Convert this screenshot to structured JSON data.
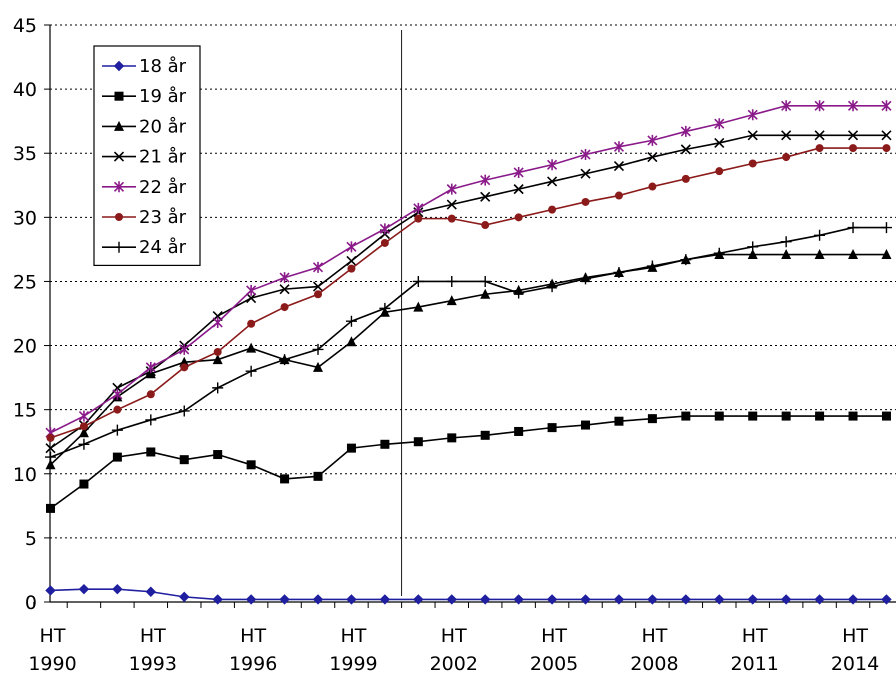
{
  "chart_data": {
    "type": "line",
    "title": "",
    "xlabel": "",
    "ylabel": "",
    "ylim": [
      0,
      45
    ],
    "y_ticks": [
      "0",
      "5",
      "10",
      "15",
      "20",
      "25",
      "30",
      "35",
      "40",
      "45"
    ],
    "x_tick_labels": [
      [
        "HT",
        "1990"
      ],
      [
        "HT",
        "1993"
      ],
      [
        "HT",
        "1996"
      ],
      [
        "HT",
        "1999"
      ],
      [
        "HT",
        "2002"
      ],
      [
        "HT",
        "2005"
      ],
      [
        "HT",
        "2008"
      ],
      [
        "HT",
        "2011"
      ],
      [
        "HT",
        "2014"
      ]
    ],
    "x_tick_years": [
      1990,
      1993,
      1996,
      1999,
      2002,
      2005,
      2008,
      2011,
      2014
    ],
    "x": [
      1990,
      1991,
      1992,
      1993,
      1994,
      1995,
      1996,
      1997,
      1998,
      1999,
      2000,
      2001,
      2002,
      2003,
      2004,
      2005,
      2006,
      2007,
      2008,
      2009,
      2010,
      2011,
      2012,
      2013,
      2014,
      2015
    ],
    "vertical_line_at": 2000.5,
    "grid": "horizontal dotted",
    "legend_position": "top-left",
    "series": [
      {
        "name": "18 år",
        "marker": "diamond",
        "color": "#1f1fa0",
        "values": [
          0.9,
          1.0,
          1.0,
          0.8,
          0.4,
          0.2,
          0.2,
          0.2,
          0.2,
          0.2,
          0.2,
          0.2,
          0.2,
          0.2,
          0.2,
          0.2,
          0.2,
          0.2,
          0.2,
          0.2,
          0.2,
          0.2,
          0.2,
          0.2,
          0.2,
          0.2
        ]
      },
      {
        "name": "19 år",
        "marker": "square",
        "color": "#000000",
        "values": [
          7.3,
          9.2,
          11.3,
          11.7,
          11.1,
          11.5,
          10.7,
          9.6,
          9.8,
          12.0,
          12.3,
          12.5,
          12.8,
          13.0,
          13.3,
          13.6,
          13.8,
          14.1,
          14.3,
          14.5,
          14.5,
          14.5,
          14.5,
          14.5,
          14.5,
          14.5
        ]
      },
      {
        "name": "20 år",
        "marker": "triangle",
        "color": "#000000",
        "values": [
          10.7,
          13.2,
          16.0,
          17.8,
          18.7,
          18.9,
          19.8,
          18.9,
          18.3,
          20.3,
          22.6,
          23.0,
          23.5,
          24.0,
          24.3,
          24.8,
          25.3,
          25.7,
          26.1,
          26.7,
          27.1,
          27.1,
          27.1,
          27.1,
          27.1,
          27.1
        ]
      },
      {
        "name": "21 år",
        "marker": "x",
        "color": "#000000",
        "values": [
          12.0,
          13.8,
          16.7,
          18.0,
          20.0,
          22.3,
          23.7,
          24.4,
          24.6,
          26.6,
          28.7,
          30.4,
          31.0,
          31.6,
          32.2,
          32.8,
          33.4,
          34.0,
          34.7,
          35.3,
          35.8,
          36.4,
          36.4,
          36.4,
          36.4,
          36.4
        ]
      },
      {
        "name": "22 år",
        "marker": "star",
        "color": "#8a1a8a",
        "values": [
          13.2,
          14.5,
          16.2,
          18.3,
          19.7,
          21.8,
          24.3,
          25.3,
          26.1,
          27.7,
          29.1,
          30.7,
          32.2,
          32.9,
          33.5,
          34.1,
          34.9,
          35.5,
          36.0,
          36.7,
          37.3,
          38.0,
          38.7,
          38.7,
          38.7,
          38.7
        ]
      },
      {
        "name": "23 år",
        "marker": "circle",
        "color": "#8b1a1a",
        "values": [
          12.8,
          13.7,
          15.0,
          16.2,
          18.3,
          19.5,
          21.7,
          23.0,
          24.0,
          26.0,
          28.0,
          29.9,
          29.9,
          29.4,
          30.0,
          30.6,
          31.2,
          31.7,
          32.4,
          33.0,
          33.6,
          34.2,
          34.7,
          35.4,
          35.4,
          35.4
        ]
      },
      {
        "name": "24 år",
        "marker": "plus",
        "color": "#000000",
        "values": [
          11.3,
          12.3,
          13.4,
          14.2,
          14.9,
          16.7,
          18.0,
          18.9,
          19.7,
          21.9,
          22.9,
          25.0,
          25.0,
          25.0,
          24.1,
          24.6,
          25.2,
          25.7,
          26.2,
          26.7,
          27.2,
          27.7,
          28.1,
          28.6,
          29.2,
          29.2
        ]
      }
    ]
  }
}
